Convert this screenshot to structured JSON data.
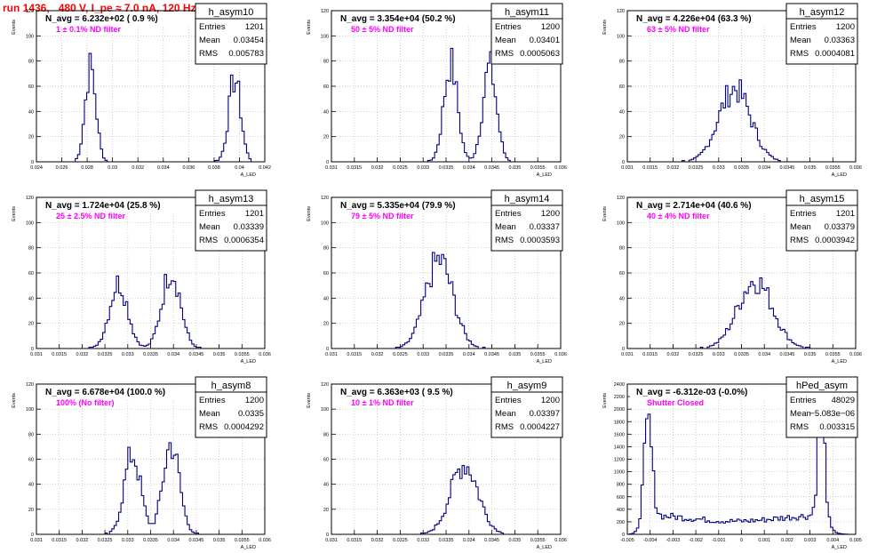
{
  "title": "run 1436,   480 V, I_pe ≈ 7.0 nA, 120 Hz",
  "axis": {
    "ylabel": "Events",
    "xlabel": "A_LED"
  },
  "chart_data": [
    {
      "type": "bar",
      "name": "h_asym10",
      "summary": "N_avg = 6.232e+02 ( 0.9 %)",
      "note": "1 ± 0.1% ND filter",
      "stats": {
        "Entries": "1201",
        "Mean": "0.03454",
        "RMS": "0.005783"
      },
      "xlim": [
        0.024,
        0.043
      ],
      "ylim": [
        0,
        120
      ],
      "xticks": [
        "0.024",
        "0.026",
        "0.028",
        "0.03",
        "0.032",
        "0.034",
        "0.036",
        "0.038",
        "0.04",
        "0.042"
      ],
      "yticks": [
        "0",
        "20",
        "40",
        "60",
        "80",
        "100",
        "120"
      ],
      "peaks": [
        {
          "center": 0.0285,
          "sigma": 0.00045,
          "height": 75
        },
        {
          "center": 0.0405,
          "sigma": 0.0005,
          "height": 66
        }
      ]
    },
    {
      "type": "bar",
      "name": "h_asym11",
      "summary": "N_avg = 3.354e+04 (50.2 %)",
      "note": "50 ± 5% ND filter",
      "stats": {
        "Entries": "1200",
        "Mean": "0.03401",
        "RMS": "0.0005063"
      },
      "xlim": [
        0.031,
        0.036
      ],
      "ylim": [
        0,
        120
      ],
      "xticks": [
        "0.031",
        "0.0315",
        "0.032",
        "0.0325",
        "0.033",
        "0.0335",
        "0.034",
        "0.0345",
        "0.035",
        "0.0355",
        "0.036"
      ],
      "yticks": [
        "0",
        "20",
        "40",
        "60",
        "80",
        "100",
        "120"
      ],
      "peaks": [
        {
          "center": 0.0336,
          "sigma": 0.00015,
          "height": 78
        },
        {
          "center": 0.03445,
          "sigma": 0.00015,
          "height": 75
        }
      ]
    },
    {
      "type": "bar",
      "name": "h_asym12",
      "summary": "N_avg = 4.226e+04 (63.3 %)",
      "note": "63 ± 5% ND filter",
      "stats": {
        "Entries": "1200",
        "Mean": "0.03363",
        "RMS": "0.0004081"
      },
      "xlim": [
        0.031,
        0.036
      ],
      "ylim": [
        0,
        120
      ],
      "xticks": [
        "0.031",
        "0.0315",
        "0.032",
        "0.0325",
        "0.033",
        "0.0335",
        "0.034",
        "0.0345",
        "0.035",
        "0.0355",
        "0.036"
      ],
      "yticks": [
        "0",
        "20",
        "40",
        "60",
        "80",
        "100",
        "120"
      ],
      "peaks": [
        {
          "center": 0.03335,
          "sigma": 0.00035,
          "height": 58
        }
      ]
    },
    {
      "type": "bar",
      "name": "h_asym13",
      "summary": "N_avg = 1.724e+04 (25.8 %)",
      "note": "25 ± 2.5% ND filter",
      "stats": {
        "Entries": "1201",
        "Mean": "0.03339",
        "RMS": "0.0006354"
      },
      "xlim": [
        0.031,
        0.036
      ],
      "ylim": [
        0,
        120
      ],
      "xticks": [
        "0.031",
        "0.0315",
        "0.032",
        "0.0325",
        "0.033",
        "0.0335",
        "0.034",
        "0.0345",
        "0.035",
        "0.0355",
        "0.036"
      ],
      "yticks": [
        "0",
        "20",
        "40",
        "60",
        "80",
        "100",
        "120"
      ],
      "peaks": [
        {
          "center": 0.0328,
          "sigma": 0.0002,
          "height": 52
        },
        {
          "center": 0.03395,
          "sigma": 0.0002,
          "height": 62
        }
      ]
    },
    {
      "type": "bar",
      "name": "h_asym14",
      "summary": "N_avg = 5.335e+04 (79.9 %)",
      "note": "79 ± 5% ND filter",
      "stats": {
        "Entries": "1200",
        "Mean": "0.03337",
        "RMS": "0.0003593"
      },
      "xlim": [
        0.031,
        0.036
      ],
      "ylim": [
        0,
        120
      ],
      "xticks": [
        "0.031",
        "0.0315",
        "0.032",
        "0.0325",
        "0.033",
        "0.0335",
        "0.034",
        "0.0345",
        "0.035",
        "0.0355",
        "0.036"
      ],
      "yticks": [
        "0",
        "20",
        "40",
        "60",
        "80",
        "100",
        "120"
      ],
      "peaks": [
        {
          "center": 0.03335,
          "sigma": 0.0003,
          "height": 70
        }
      ]
    },
    {
      "type": "bar",
      "name": "h_asym15",
      "summary": "N_avg = 2.714e+04 (40.6 %)",
      "note": "40 ± 4% ND filter",
      "stats": {
        "Entries": "1201",
        "Mean": "0.03379",
        "RMS": "0.0003942"
      },
      "xlim": [
        0.031,
        0.036
      ],
      "ylim": [
        0,
        120
      ],
      "xticks": [
        "0.031",
        "0.0315",
        "0.032",
        "0.0325",
        "0.033",
        "0.0335",
        "0.034",
        "0.0345",
        "0.035",
        "0.0355",
        "0.036"
      ],
      "yticks": [
        "0",
        "20",
        "40",
        "60",
        "80",
        "100",
        "120"
      ],
      "peaks": [
        {
          "center": 0.0338,
          "sigma": 0.00038,
          "height": 54
        }
      ]
    },
    {
      "type": "bar",
      "name": "h_asym8",
      "summary": "N_avg = 6.678e+04 (100.0 %)",
      "note": "100% (No filter)",
      "stats": {
        "Entries": "1200",
        "Mean": "0.0335",
        "RMS": "0.0004292"
      },
      "xlim": [
        0.031,
        0.036
      ],
      "ylim": [
        0,
        120
      ],
      "xticks": [
        "0.031",
        "0.0315",
        "0.032",
        "0.0325",
        "0.033",
        "0.0335",
        "0.034",
        "0.0345",
        "0.035",
        "0.0355",
        "0.036"
      ],
      "yticks": [
        "0",
        "20",
        "40",
        "60",
        "80",
        "100",
        "120"
      ],
      "peaks": [
        {
          "center": 0.0331,
          "sigma": 0.00018,
          "height": 64
        },
        {
          "center": 0.03395,
          "sigma": 0.00018,
          "height": 72
        }
      ]
    },
    {
      "type": "bar",
      "name": "h_asym9",
      "summary": "N_avg = 6.363e+03 ( 9.5 %)",
      "note": "10 ± 1% ND filter",
      "stats": {
        "Entries": "1200",
        "Mean": "0.03397",
        "RMS": "0.0004227"
      },
      "xlim": [
        0.031,
        0.036
      ],
      "ylim": [
        0,
        120
      ],
      "xticks": [
        "0.031",
        "0.0315",
        "0.032",
        "0.0325",
        "0.033",
        "0.0335",
        "0.034",
        "0.0345",
        "0.035",
        "0.0355",
        "0.036"
      ],
      "yticks": [
        "0",
        "20",
        "40",
        "60",
        "80",
        "100",
        "120"
      ],
      "peaks": [
        {
          "center": 0.0339,
          "sigma": 0.0003,
          "height": 56
        }
      ]
    },
    {
      "type": "bar",
      "name": "hPed_asym",
      "summary": "N_avg = -6.312e-03 (-0.0%)",
      "note": "Shutter Closed",
      "stats": {
        "Entries": "48029",
        "Mean": "−5.083e−06",
        "RMS": "0.003315"
      },
      "xlim": [
        -0.005,
        0.005
      ],
      "ylim": [
        0,
        2400
      ],
      "xticks": [
        "-0.005",
        "-0.004",
        "-0.003",
        "-0.002",
        "-0.001",
        "0",
        "0.001",
        "0.002",
        "0.003",
        "0.004",
        "0.005"
      ],
      "yticks": [
        "0",
        "200",
        "400",
        "600",
        "800",
        "1000",
        "1200",
        "1400",
        "1600",
        "1800",
        "2000",
        "2200",
        "2400"
      ],
      "peaks": [
        {
          "center": -0.0041,
          "sigma": 0.00018,
          "height": 1500
        },
        {
          "center": 0.0035,
          "sigma": 0.00015,
          "height": 1900
        }
      ],
      "baseline": {
        "level": 300
      }
    }
  ]
}
